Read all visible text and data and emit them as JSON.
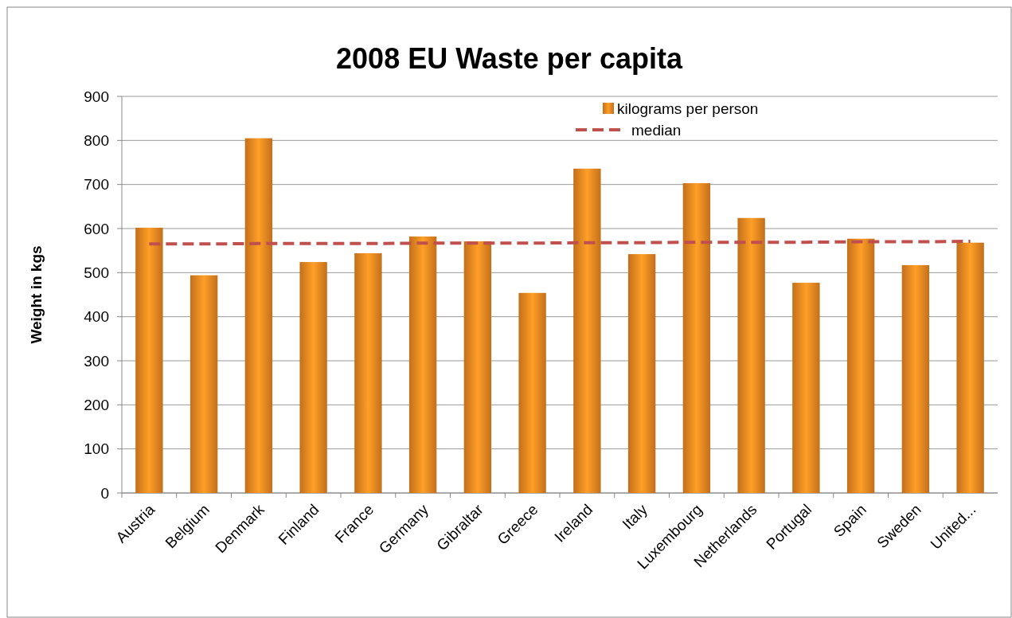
{
  "chart_data": {
    "type": "bar",
    "title": "2008 EU Waste per capita",
    "ylabel": "Weight in kgs",
    "categories": [
      "Austria",
      "Belgium",
      "Denmark",
      "Finland",
      "France",
      "Germany",
      "Gibraltar",
      "Greece",
      "Ireland",
      "Italy",
      "Luxembourg",
      "Netherlands",
      "Portugal",
      "Spain",
      "Sweden",
      "United..."
    ],
    "series": [
      {
        "name": "kilograms per person",
        "color": "#f28a22",
        "values": [
          602,
          494,
          805,
          524,
          544,
          582,
          571,
          454,
          736,
          542,
          703,
          624,
          477,
          577,
          517,
          568
        ]
      },
      {
        "name": "median",
        "type": "line",
        "color": "#c0504d",
        "line_style": "dashed",
        "values": [
          565,
          565,
          566,
          566,
          566,
          567,
          567,
          567,
          568,
          568,
          569,
          569,
          569,
          570,
          570,
          571
        ]
      }
    ],
    "ylim": [
      0,
      900
    ],
    "yticks": [
      0,
      100,
      200,
      300,
      400,
      500,
      600,
      700,
      800,
      900
    ],
    "grid": "y",
    "legend": "top right"
  }
}
